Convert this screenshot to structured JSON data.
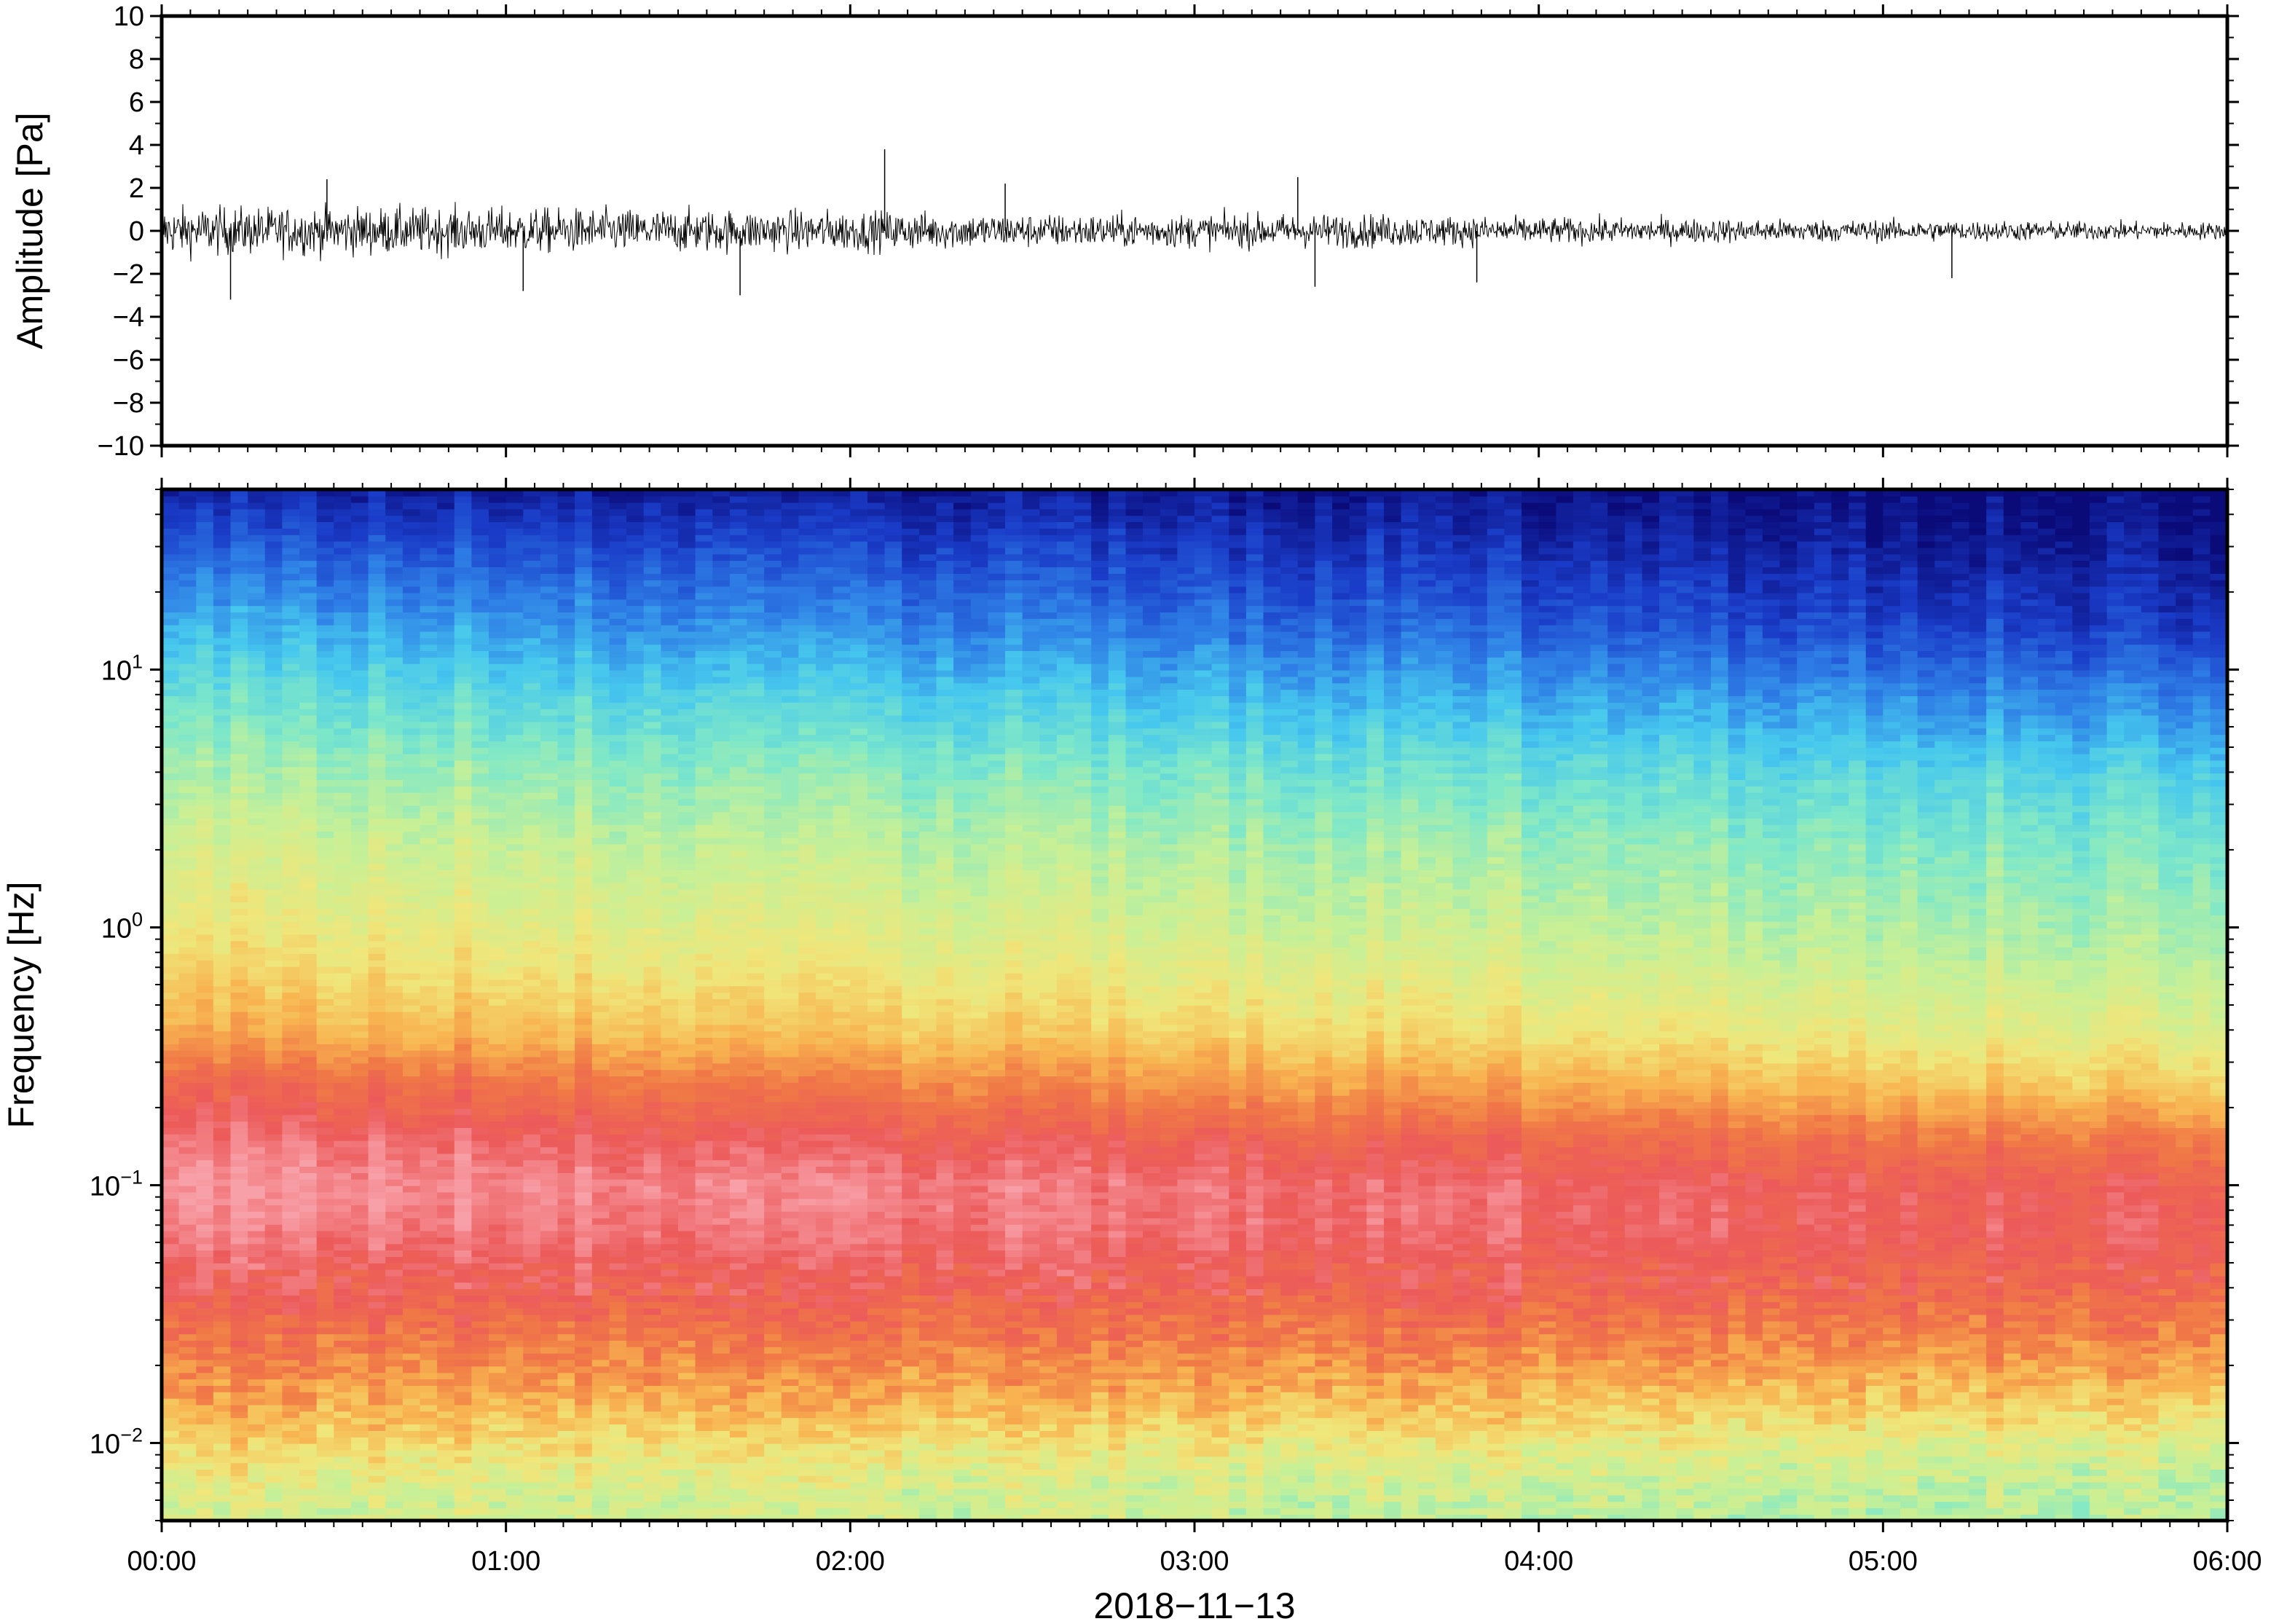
{
  "chart_data": [
    {
      "type": "line",
      "title": "",
      "ylabel": "Amplitude [Pa]",
      "xlabel": "",
      "ylim": [
        -10,
        10
      ],
      "yticks": [
        {
          "value": 10,
          "label": "10"
        },
        {
          "value": 8,
          "label": "8"
        },
        {
          "value": 6,
          "label": "6"
        },
        {
          "value": 4,
          "label": "4"
        },
        {
          "value": 2,
          "label": "2"
        },
        {
          "value": 0,
          "label": "0"
        },
        {
          "value": -2,
          "label": "−2"
        },
        {
          "value": -4,
          "label": "−4"
        },
        {
          "value": -6,
          "label": "−6"
        },
        {
          "value": -8,
          "label": "−8"
        },
        {
          "value": -10,
          "label": "−10"
        }
      ],
      "xlim_hours": [
        0,
        6
      ],
      "grid": false,
      "line_color": "#000000",
      "envelope": {
        "x_hours": [
          0.0,
          0.5,
          1.0,
          1.5,
          2.0,
          2.5,
          3.0,
          3.5,
          4.0,
          4.5,
          5.0,
          5.5,
          6.0
        ],
        "typical_amplitude_pa": [
          1.0,
          1.0,
          0.95,
          0.9,
          0.85,
          0.7,
          0.7,
          0.7,
          0.55,
          0.5,
          0.45,
          0.4,
          0.35
        ],
        "note": "noise-like pressure trace"
      },
      "spikes": [
        {
          "x_hours": 0.2,
          "value": -3.2
        },
        {
          "x_hours": 0.48,
          "value": 2.4
        },
        {
          "x_hours": 1.05,
          "value": -2.8
        },
        {
          "x_hours": 1.68,
          "value": -3.0
        },
        {
          "x_hours": 2.1,
          "value": 3.8
        },
        {
          "x_hours": 2.45,
          "value": 2.2
        },
        {
          "x_hours": 3.3,
          "value": 2.5
        },
        {
          "x_hours": 3.35,
          "value": -2.6
        },
        {
          "x_hours": 3.82,
          "value": -2.4
        },
        {
          "x_hours": 5.2,
          "value": -2.2
        }
      ]
    },
    {
      "type": "heatmap",
      "title": "",
      "ylabel": "Frequency [Hz]",
      "xlabel": "2018−11−13",
      "y_scale": "log",
      "ylim": [
        0.005,
        50
      ],
      "yticks": [
        {
          "value": 10,
          "base": "10",
          "exp": "1"
        },
        {
          "value": 1,
          "base": "10",
          "exp": "0"
        },
        {
          "value": 0.1,
          "base": "10",
          "exp": "−1"
        },
        {
          "value": 0.01,
          "base": "10",
          "exp": "−2"
        }
      ],
      "xlim_hours": [
        0,
        6
      ],
      "xticks": [
        {
          "value": 0,
          "label": "00:00"
        },
        {
          "value": 1,
          "label": "01:00"
        },
        {
          "value": 2,
          "label": "02:00"
        },
        {
          "value": 3,
          "label": "03:00"
        },
        {
          "value": 4,
          "label": "04:00"
        },
        {
          "value": 5,
          "label": "05:00"
        },
        {
          "value": 6,
          "label": "06:00"
        }
      ],
      "colormap": [
        "#0a0a78",
        "#1a3cc8",
        "#2e7ee6",
        "#46c8ee",
        "#7fe8c8",
        "#c8f096",
        "#f0e67a",
        "#f8b450",
        "#f07846",
        "#ec5a5a",
        "#f8a0a8"
      ],
      "power_profile": {
        "note": "relative spectral power (0-1) per frequency at start and end of the window",
        "freq_hz": [
          0.006,
          0.009,
          0.015,
          0.025,
          0.04,
          0.07,
          0.1,
          0.15,
          0.25,
          0.4,
          0.7,
          1.0,
          2.0,
          4.0,
          8.0,
          15.0,
          30.0,
          50.0
        ],
        "start": [
          0.55,
          0.62,
          0.74,
          0.82,
          0.9,
          0.97,
          1.0,
          0.95,
          0.86,
          0.72,
          0.64,
          0.6,
          0.54,
          0.47,
          0.38,
          0.28,
          0.16,
          0.06
        ],
        "end": [
          0.48,
          0.53,
          0.66,
          0.78,
          0.86,
          0.9,
          0.88,
          0.8,
          0.64,
          0.55,
          0.49,
          0.45,
          0.4,
          0.32,
          0.2,
          0.09,
          0.03,
          0.0
        ]
      }
    }
  ]
}
